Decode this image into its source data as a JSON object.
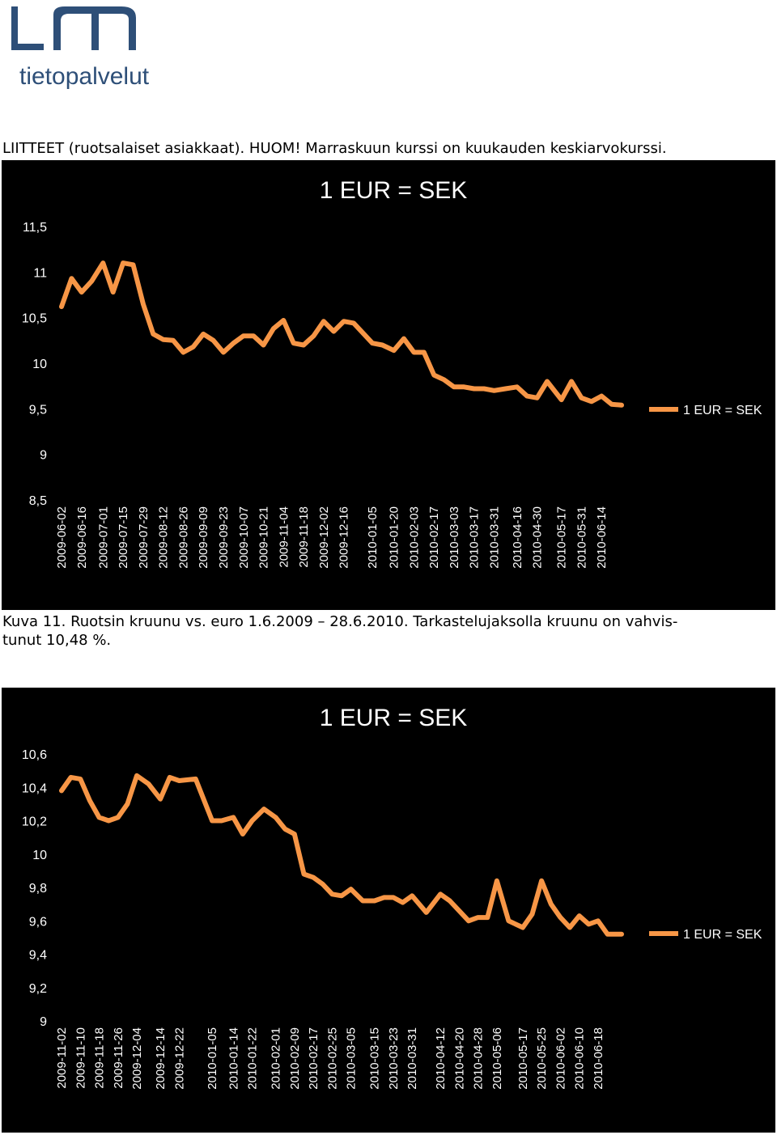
{
  "header": {
    "brand_logo_text": "tietopalvelut",
    "heading": "LIITTEET (ruotsalaiset asiakkaat). HUOM! Marraskuun kurssi on kuukauden keskiarvokurssi."
  },
  "caption": {
    "line1": "Kuva 11. Ruotsin kruunu vs. euro 1.6.2009  – 28.6.2010. Tarkastelujaksolla kruunu on vahvis-",
    "line2": "tunut 10,48 %."
  },
  "colors": {
    "background": "#000000",
    "series": "#F79646",
    "text": "#FFFFFF",
    "logo": "#2E4F78"
  },
  "chart_data": [
    {
      "type": "line",
      "title": "1 EUR = SEK",
      "ylim": [
        8.5,
        11.5
      ],
      "yticks": [
        8.5,
        9,
        9.5,
        10,
        10.5,
        11,
        11.5
      ],
      "ytick_labels": [
        "8,5",
        "9",
        "9,5",
        "10",
        "10,5",
        "11",
        "11,5"
      ],
      "x_tick_labels": [
        "2009-06-02",
        "2009-06-16",
        "2009-07-01",
        "2009-07-15",
        "2009-07-29",
        "2009-08-12",
        "2009-08-26",
        "2009-09-09",
        "2009-09-23",
        "2009-10-07",
        "2009-10-21",
        "2009-11-04",
        "2009-11-18",
        "2009-12-02",
        "2009-12-16",
        "2010-01-05",
        "2010-01-20",
        "2010-02-03",
        "2010-02-17",
        "2010-03-03",
        "2010-03-17",
        "2010-03-31",
        "2010-04-16",
        "2010-04-30",
        "2010-05-17",
        "2010-05-31",
        "2010-06-14"
      ],
      "grid": false,
      "legend": "right",
      "series": [
        {
          "name": "1 EUR = SEK",
          "x": [
            "2009-06-02",
            "2009-06-09",
            "2009-06-16",
            "2009-06-23",
            "2009-07-01",
            "2009-07-08",
            "2009-07-15",
            "2009-07-22",
            "2009-07-29",
            "2009-08-05",
            "2009-08-12",
            "2009-08-19",
            "2009-08-26",
            "2009-09-02",
            "2009-09-09",
            "2009-09-16",
            "2009-09-23",
            "2009-09-30",
            "2009-10-07",
            "2009-10-14",
            "2009-10-21",
            "2009-10-28",
            "2009-11-04",
            "2009-11-11",
            "2009-11-18",
            "2009-11-25",
            "2009-12-02",
            "2009-12-09",
            "2009-12-16",
            "2009-12-23",
            "2010-01-05",
            "2010-01-12",
            "2010-01-20",
            "2010-01-27",
            "2010-02-03",
            "2010-02-10",
            "2010-02-17",
            "2010-02-24",
            "2010-03-03",
            "2010-03-10",
            "2010-03-17",
            "2010-03-24",
            "2010-03-31",
            "2010-04-08",
            "2010-04-16",
            "2010-04-23",
            "2010-04-30",
            "2010-05-07",
            "2010-05-17",
            "2010-05-24",
            "2010-05-31",
            "2010-06-07",
            "2010-06-14",
            "2010-06-21",
            "2010-06-28"
          ],
          "values": [
            10.62,
            10.93,
            10.78,
            10.9,
            11.1,
            10.78,
            11.1,
            11.08,
            10.65,
            10.32,
            10.26,
            10.25,
            10.12,
            10.18,
            10.32,
            10.25,
            10.12,
            10.22,
            10.3,
            10.3,
            10.2,
            10.38,
            10.47,
            10.22,
            10.2,
            10.3,
            10.46,
            10.35,
            10.46,
            10.44,
            10.22,
            10.2,
            10.14,
            10.27,
            10.12,
            10.12,
            9.87,
            9.82,
            9.74,
            9.74,
            9.72,
            9.72,
            9.7,
            9.72,
            9.74,
            9.64,
            9.62,
            9.8,
            9.6,
            9.8,
            9.62,
            9.58,
            9.64,
            9.55,
            9.54
          ]
        }
      ]
    },
    {
      "type": "line",
      "title": "1 EUR = SEK",
      "ylim": [
        9,
        10.6
      ],
      "yticks": [
        9,
        9.2,
        9.4,
        9.6,
        9.8,
        10,
        10.2,
        10.4,
        10.6
      ],
      "ytick_labels": [
        "9",
        "9,2",
        "9,4",
        "9,6",
        "9,8",
        "10",
        "10,2",
        "10,4",
        "10,6"
      ],
      "x_tick_labels": [
        "2009-11-02",
        "2009-11-10",
        "2009-11-18",
        "2009-11-26",
        "2009-12-04",
        "2009-12-14",
        "2009-12-22",
        "2010-01-05",
        "2010-01-14",
        "2010-01-22",
        "2010-02-01",
        "2010-02-09",
        "2010-02-17",
        "2010-02-25",
        "2010-03-05",
        "2010-03-15",
        "2010-03-23",
        "2010-03-31",
        "2010-04-12",
        "2010-04-20",
        "2010-04-28",
        "2010-05-06",
        "2010-05-17",
        "2010-05-25",
        "2010-06-02",
        "2010-06-10",
        "2010-06-18"
      ],
      "grid": false,
      "legend": "right",
      "series": [
        {
          "name": "1 EUR = SEK",
          "x": [
            "2009-11-02",
            "2009-11-06",
            "2009-11-10",
            "2009-11-14",
            "2009-11-18",
            "2009-11-22",
            "2009-11-26",
            "2009-11-30",
            "2009-12-04",
            "2009-12-09",
            "2009-12-14",
            "2009-12-18",
            "2009-12-22",
            "2009-12-29",
            "2010-01-05",
            "2010-01-09",
            "2010-01-14",
            "2010-01-18",
            "2010-01-22",
            "2010-01-27",
            "2010-02-01",
            "2010-02-05",
            "2010-02-09",
            "2010-02-13",
            "2010-02-17",
            "2010-02-21",
            "2010-02-25",
            "2010-03-01",
            "2010-03-05",
            "2010-03-10",
            "2010-03-15",
            "2010-03-19",
            "2010-03-23",
            "2010-03-27",
            "2010-03-31",
            "2010-04-06",
            "2010-04-12",
            "2010-04-16",
            "2010-04-20",
            "2010-04-24",
            "2010-04-28",
            "2010-05-02",
            "2010-05-06",
            "2010-05-11",
            "2010-05-17",
            "2010-05-21",
            "2010-05-25",
            "2010-05-29",
            "2010-06-02",
            "2010-06-06",
            "2010-06-10",
            "2010-06-14",
            "2010-06-18",
            "2010-06-22",
            "2010-06-28"
          ],
          "values": [
            10.38,
            10.46,
            10.45,
            10.32,
            10.22,
            10.2,
            10.22,
            10.3,
            10.47,
            10.42,
            10.33,
            10.46,
            10.44,
            10.45,
            10.2,
            10.2,
            10.22,
            10.12,
            10.2,
            10.27,
            10.22,
            10.15,
            10.12,
            9.88,
            9.86,
            9.82,
            9.76,
            9.75,
            9.79,
            9.72,
            9.72,
            9.74,
            9.74,
            9.71,
            9.75,
            9.65,
            9.76,
            9.72,
            9.66,
            9.6,
            9.62,
            9.62,
            9.84,
            9.6,
            9.56,
            9.64,
            9.84,
            9.7,
            9.62,
            9.56,
            9.63,
            9.58,
            9.6,
            9.52,
            9.52
          ]
        }
      ]
    }
  ]
}
